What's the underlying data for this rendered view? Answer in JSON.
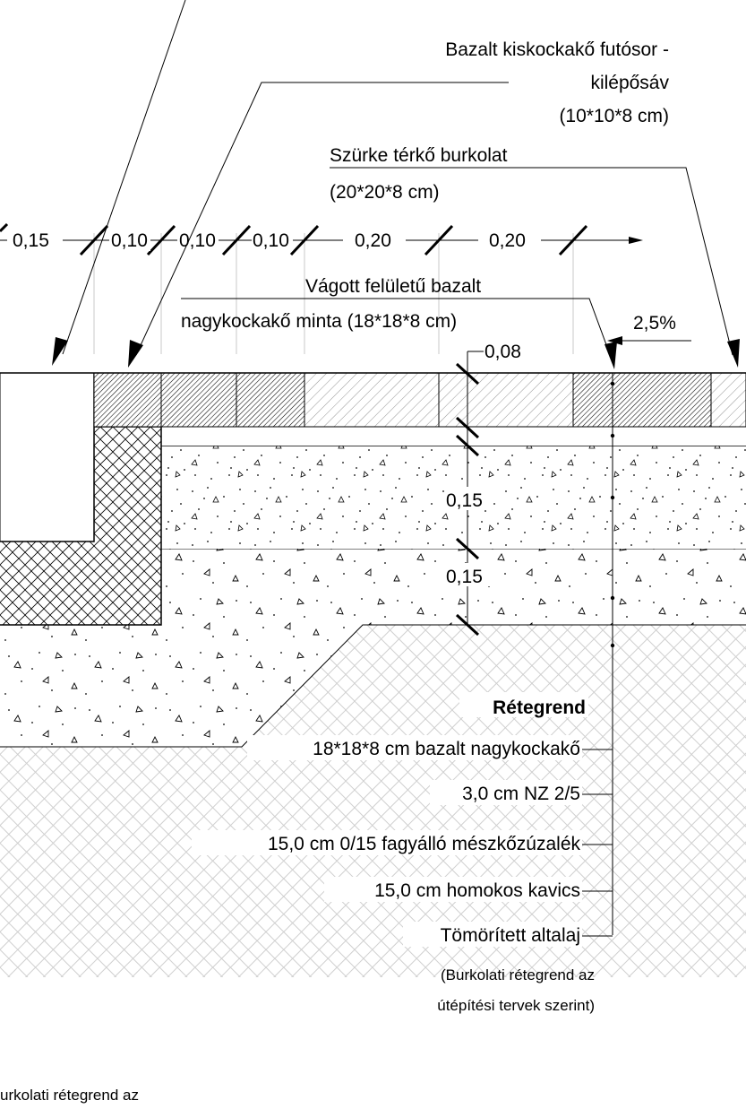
{
  "labels": {
    "kiskocka_line1": "Bazalt kiskockakő futósor -",
    "kiskocka_line2": "kilépősáv",
    "kiskocka_line3": "(10*10*8 cm)",
    "terko_line1": "Szürke térkő burkolat",
    "terko_line2": "(20*20*8 cm)",
    "nagykocka_line1": "Vágott felületű bazalt",
    "nagykocka_line2": "nagykockakő minta (18*18*8 cm)",
    "slope": "2,5%"
  },
  "dimensions": {
    "d1": "0,15",
    "d2": "0,10",
    "d3": "0,10",
    "d4": "0,10",
    "d5": "0,20",
    "d6": "0,20",
    "v1": "0,08",
    "v2": "0,15",
    "v3": "0,15"
  },
  "layers": {
    "title": "Rétegrend",
    "items": [
      "18*18*8 cm bazalt nagykockakő",
      "3,0 cm NZ 2/5",
      "15,0 cm 0/15 fagyálló mészkőzúzalék",
      "15,0 cm homokos kavics",
      "Tömörített altalaj"
    ],
    "note_line1": "(Burkolati rétegrend az",
    "note_line2": "útépítési tervek szerint)"
  },
  "footer_fragment": "urkolati rétegrend az"
}
